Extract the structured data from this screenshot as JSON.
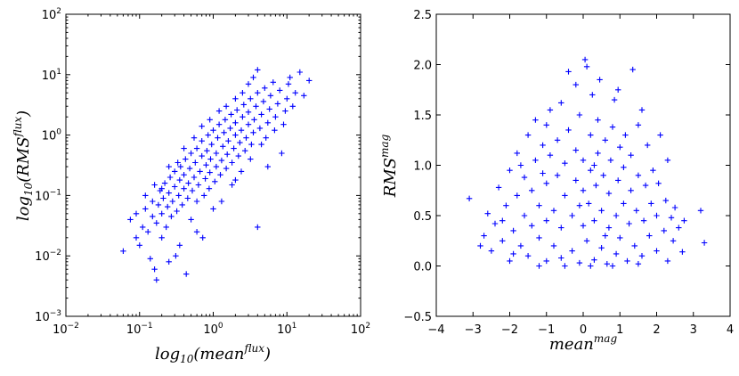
{
  "colors": {
    "marker": "#0000ff",
    "axes": "#000000",
    "background": "#ffffff"
  },
  "chart_data": [
    {
      "type": "scatter",
      "marker": "+",
      "xscale": "log",
      "yscale": "log",
      "xlim": [
        0.01,
        100
      ],
      "ylim": [
        0.001,
        100
      ],
      "xlabel_parts": {
        "base": "log",
        "sub": "10",
        "open": "(",
        "main": "mean",
        "sup": "flux",
        "close": ")"
      },
      "ylabel_parts": {
        "base": "log",
        "sub": "10",
        "open": "(",
        "main": "RMS",
        "sup": "flux",
        "close": ")"
      },
      "xticks": [
        {
          "value": 0.01,
          "base": "10",
          "exp": "−2"
        },
        {
          "value": 0.1,
          "base": "10",
          "exp": "−1"
        },
        {
          "value": 1,
          "base": "10",
          "exp": "0"
        },
        {
          "value": 10,
          "base": "10",
          "exp": "1"
        },
        {
          "value": 100,
          "base": "10",
          "exp": "2"
        }
      ],
      "yticks": [
        {
          "value": 0.001,
          "base": "10",
          "exp": "−3"
        },
        {
          "value": 0.01,
          "base": "10",
          "exp": "−2"
        },
        {
          "value": 0.1,
          "base": "10",
          "exp": "−1"
        },
        {
          "value": 1,
          "base": "10",
          "exp": "0"
        },
        {
          "value": 10,
          "base": "10",
          "exp": "1"
        },
        {
          "value": 100,
          "base": "10",
          "exp": "2"
        }
      ],
      "points": [
        [
          0.06,
          0.012
        ],
        [
          0.075,
          0.04
        ],
        [
          0.09,
          0.02
        ],
        [
          0.1,
          0.015
        ],
        [
          0.11,
          0.03
        ],
        [
          0.12,
          0.06
        ],
        [
          0.13,
          0.025
        ],
        [
          0.14,
          0.009
        ],
        [
          0.15,
          0.045
        ],
        [
          0.15,
          0.08
        ],
        [
          0.17,
          0.004
        ],
        [
          0.17,
          0.035
        ],
        [
          0.18,
          0.07
        ],
        [
          0.19,
          0.12
        ],
        [
          0.2,
          0.02
        ],
        [
          0.2,
          0.05
        ],
        [
          0.21,
          0.09
        ],
        [
          0.22,
          0.16
        ],
        [
          0.23,
          0.03
        ],
        [
          0.24,
          0.065
        ],
        [
          0.25,
          0.11
        ],
        [
          0.26,
          0.2
        ],
        [
          0.27,
          0.045
        ],
        [
          0.28,
          0.08
        ],
        [
          0.3,
          0.14
        ],
        [
          0.3,
          0.25
        ],
        [
          0.31,
          0.01
        ],
        [
          0.32,
          0.055
        ],
        [
          0.34,
          0.1
        ],
        [
          0.35,
          0.18
        ],
        [
          0.36,
          0.3
        ],
        [
          0.38,
          0.07
        ],
        [
          0.4,
          0.13
        ],
        [
          0.4,
          0.22
        ],
        [
          0.42,
          0.4
        ],
        [
          0.43,
          0.005
        ],
        [
          0.45,
          0.09
        ],
        [
          0.46,
          0.16
        ],
        [
          0.48,
          0.28
        ],
        [
          0.5,
          0.5
        ],
        [
          0.5,
          0.04
        ],
        [
          0.52,
          0.12
        ],
        [
          0.55,
          0.2
        ],
        [
          0.57,
          0.35
        ],
        [
          0.6,
          0.6
        ],
        [
          0.6,
          0.08
        ],
        [
          0.63,
          0.15
        ],
        [
          0.66,
          0.25
        ],
        [
          0.7,
          0.45
        ],
        [
          0.7,
          0.8
        ],
        [
          0.72,
          0.02
        ],
        [
          0.75,
          0.1
        ],
        [
          0.78,
          0.19
        ],
        [
          0.8,
          0.32
        ],
        [
          0.82,
          0.55
        ],
        [
          0.85,
          1.0
        ],
        [
          0.88,
          0.13
        ],
        [
          0.9,
          0.24
        ],
        [
          0.92,
          0.4
        ],
        [
          0.95,
          0.7
        ],
        [
          1.0,
          1.2
        ],
        [
          1.0,
          0.06
        ],
        [
          1.05,
          0.17
        ],
        [
          1.1,
          0.3
        ],
        [
          1.1,
          0.5
        ],
        [
          1.15,
          0.9
        ],
        [
          1.2,
          1.5
        ],
        [
          1.25,
          0.22
        ],
        [
          1.3,
          0.38
        ],
        [
          1.35,
          0.65
        ],
        [
          1.4,
          1.1
        ],
        [
          1.45,
          1.8
        ],
        [
          1.5,
          0.28
        ],
        [
          1.55,
          0.48
        ],
        [
          1.6,
          0.8
        ],
        [
          1.7,
          1.3
        ],
        [
          1.75,
          2.2
        ],
        [
          1.8,
          0.35
        ],
        [
          1.9,
          0.6
        ],
        [
          2.0,
          1.0
        ],
        [
          2.0,
          1.6
        ],
        [
          2.1,
          2.6
        ],
        [
          2.2,
          0.45
        ],
        [
          2.3,
          0.75
        ],
        [
          2.4,
          1.2
        ],
        [
          2.5,
          2.0
        ],
        [
          2.6,
          3.2
        ],
        [
          2.7,
          0.55
        ],
        [
          2.8,
          0.9
        ],
        [
          3.0,
          1.5
        ],
        [
          3.0,
          2.4
        ],
        [
          3.2,
          4.0
        ],
        [
          3.3,
          0.7
        ],
        [
          3.5,
          1.1
        ],
        [
          3.6,
          1.8
        ],
        [
          3.8,
          3.0
        ],
        [
          4.0,
          5.0
        ],
        [
          4.0,
          0.03
        ],
        [
          4.3,
          1.3
        ],
        [
          4.5,
          2.2
        ],
        [
          4.8,
          3.6
        ],
        [
          5.0,
          6.0
        ],
        [
          5.2,
          0.9
        ],
        [
          5.5,
          1.6
        ],
        [
          5.8,
          2.7
        ],
        [
          6.0,
          4.5
        ],
        [
          6.5,
          7.5
        ],
        [
          6.8,
          1.2
        ],
        [
          7.0,
          2.0
        ],
        [
          7.5,
          3.3
        ],
        [
          8.0,
          5.5
        ],
        [
          8.5,
          0.5
        ],
        [
          9.0,
          1.5
        ],
        [
          9.5,
          2.5
        ],
        [
          10.0,
          4.0
        ],
        [
          10.5,
          7.0
        ],
        [
          11.0,
          9.0
        ],
        [
          12.0,
          3.0
        ],
        [
          13.0,
          5.0
        ],
        [
          15.0,
          11.0
        ],
        [
          17.0,
          4.5
        ],
        [
          20.0,
          8.0
        ],
        [
          0.09,
          0.05
        ],
        [
          0.12,
          0.1
        ],
        [
          0.16,
          0.15
        ],
        [
          0.2,
          0.13
        ],
        [
          0.25,
          0.3
        ],
        [
          0.33,
          0.35
        ],
        [
          0.4,
          0.6
        ],
        [
          0.55,
          0.9
        ],
        [
          0.7,
          1.4
        ],
        [
          0.9,
          1.8
        ],
        [
          1.2,
          2.5
        ],
        [
          1.5,
          3.0
        ],
        [
          2.0,
          4.0
        ],
        [
          2.5,
          5.0
        ],
        [
          3.0,
          7.0
        ],
        [
          3.5,
          9.0
        ],
        [
          4.0,
          12.0
        ],
        [
          1.3,
          0.08
        ],
        [
          1.8,
          0.15
        ],
        [
          2.4,
          0.25
        ],
        [
          3.2,
          0.4
        ],
        [
          4.5,
          0.7
        ],
        [
          0.35,
          0.015
        ],
        [
          0.25,
          0.008
        ],
        [
          0.6,
          0.025
        ],
        [
          0.16,
          0.006
        ],
        [
          2.0,
          0.18
        ],
        [
          5.5,
          0.3
        ]
      ]
    },
    {
      "type": "scatter",
      "marker": "+",
      "xlim": [
        -4,
        4
      ],
      "ylim": [
        -0.5,
        2.5
      ],
      "xlabel_parts": {
        "main": "mean",
        "sup": "mag"
      },
      "ylabel_parts": {
        "main": "RMS",
        "sup": "mag"
      },
      "xticks": [
        {
          "value": -4,
          "label": "−4"
        },
        {
          "value": -3,
          "label": "−3"
        },
        {
          "value": -2,
          "label": "−2"
        },
        {
          "value": -1,
          "label": "−1"
        },
        {
          "value": 0,
          "label": "0"
        },
        {
          "value": 1,
          "label": "1"
        },
        {
          "value": 2,
          "label": "2"
        },
        {
          "value": 3,
          "label": "3"
        },
        {
          "value": 4,
          "label": "4"
        }
      ],
      "yticks": [
        {
          "value": -0.5,
          "label": "−0.5"
        },
        {
          "value": 0.0,
          "label": "0.0"
        },
        {
          "value": 0.5,
          "label": "0.5"
        },
        {
          "value": 1.0,
          "label": "1.0"
        },
        {
          "value": 1.5,
          "label": "1.5"
        },
        {
          "value": 2.0,
          "label": "2.0"
        },
        {
          "value": 2.5,
          "label": "2.5"
        }
      ],
      "points": [
        [
          -3.1,
          0.67
        ],
        [
          -2.7,
          0.3
        ],
        [
          -2.6,
          0.52
        ],
        [
          -2.5,
          0.15
        ],
        [
          -2.4,
          0.42
        ],
        [
          -2.3,
          0.78
        ],
        [
          -2.2,
          0.25
        ],
        [
          -2.1,
          0.6
        ],
        [
          -2.0,
          0.05
        ],
        [
          -2.0,
          0.95
        ],
        [
          -1.9,
          0.35
        ],
        [
          -1.8,
          0.7
        ],
        [
          -1.8,
          1.12
        ],
        [
          -1.7,
          0.2
        ],
        [
          -1.6,
          0.5
        ],
        [
          -1.6,
          0.88
        ],
        [
          -1.5,
          1.3
        ],
        [
          -1.5,
          0.1
        ],
        [
          -1.4,
          0.4
        ],
        [
          -1.4,
          0.75
        ],
        [
          -1.3,
          1.05
        ],
        [
          -1.3,
          1.45
        ],
        [
          -1.2,
          0.28
        ],
        [
          -1.2,
          0.6
        ],
        [
          -1.1,
          0.92
        ],
        [
          -1.1,
          1.2
        ],
        [
          -1.0,
          0.05
        ],
        [
          -1.0,
          0.45
        ],
        [
          -1.0,
          0.82
        ],
        [
          -0.9,
          1.1
        ],
        [
          -0.9,
          1.55
        ],
        [
          -0.8,
          0.2
        ],
        [
          -0.8,
          0.55
        ],
        [
          -0.7,
          0.9
        ],
        [
          -0.7,
          1.25
        ],
        [
          -0.6,
          0.08
        ],
        [
          -0.6,
          0.38
        ],
        [
          -0.5,
          0.7
        ],
        [
          -0.5,
          1.02
        ],
        [
          -0.4,
          1.35
        ],
        [
          -0.4,
          1.93
        ],
        [
          -0.3,
          0.15
        ],
        [
          -0.3,
          0.5
        ],
        [
          -0.2,
          0.85
        ],
        [
          -0.2,
          1.15
        ],
        [
          -0.1,
          1.5
        ],
        [
          -0.1,
          0.03
        ],
        [
          0.0,
          0.4
        ],
        [
          0.0,
          0.75
        ],
        [
          0.0,
          1.05
        ],
        [
          0.05,
          2.05
        ],
        [
          0.1,
          1.98
        ],
        [
          0.1,
          0.25
        ],
        [
          0.15,
          0.62
        ],
        [
          0.2,
          0.95
        ],
        [
          0.2,
          1.3
        ],
        [
          0.25,
          1.7
        ],
        [
          0.3,
          0.06
        ],
        [
          0.3,
          0.45
        ],
        [
          0.35,
          0.8
        ],
        [
          0.4,
          1.12
        ],
        [
          0.4,
          1.45
        ],
        [
          0.5,
          0.18
        ],
        [
          0.5,
          0.55
        ],
        [
          0.55,
          0.9
        ],
        [
          0.6,
          1.25
        ],
        [
          0.65,
          0.02
        ],
        [
          0.7,
          0.38
        ],
        [
          0.7,
          0.72
        ],
        [
          0.75,
          1.05
        ],
        [
          0.8,
          1.38
        ],
        [
          0.85,
          1.65
        ],
        [
          0.9,
          0.12
        ],
        [
          0.9,
          0.5
        ],
        [
          0.95,
          0.85
        ],
        [
          1.0,
          1.18
        ],
        [
          1.0,
          0.28
        ],
        [
          1.1,
          0.62
        ],
        [
          1.1,
          0.98
        ],
        [
          1.15,
          1.3
        ],
        [
          1.2,
          0.05
        ],
        [
          1.25,
          0.42
        ],
        [
          1.3,
          0.75
        ],
        [
          1.3,
          1.1
        ],
        [
          1.35,
          1.95
        ],
        [
          1.4,
          0.2
        ],
        [
          1.45,
          0.55
        ],
        [
          1.5,
          0.9
        ],
        [
          1.5,
          1.4
        ],
        [
          1.6,
          0.1
        ],
        [
          1.65,
          0.45
        ],
        [
          1.7,
          0.8
        ],
        [
          1.75,
          1.2
        ],
        [
          1.8,
          0.3
        ],
        [
          1.85,
          0.62
        ],
        [
          1.9,
          0.95
        ],
        [
          2.0,
          0.15
        ],
        [
          2.0,
          0.5
        ],
        [
          2.05,
          0.82
        ],
        [
          2.1,
          1.3
        ],
        [
          2.2,
          0.35
        ],
        [
          2.25,
          0.65
        ],
        [
          2.3,
          0.05
        ],
        [
          2.4,
          0.48
        ],
        [
          2.45,
          0.25
        ],
        [
          2.5,
          0.58
        ],
        [
          2.6,
          0.38
        ],
        [
          2.7,
          0.14
        ],
        [
          2.75,
          0.45
        ],
        [
          3.2,
          0.55
        ],
        [
          3.3,
          0.23
        ],
        [
          -2.8,
          0.2
        ],
        [
          -2.2,
          0.45
        ],
        [
          -1.9,
          0.12
        ],
        [
          -1.2,
          0.0
        ],
        [
          -0.5,
          0.0
        ],
        [
          0.2,
          0.0
        ],
        [
          0.8,
          0.0
        ],
        [
          1.5,
          0.02
        ],
        [
          -0.6,
          1.62
        ],
        [
          -0.2,
          1.8
        ],
        [
          0.45,
          1.85
        ],
        [
          0.95,
          1.75
        ],
        [
          -1.0,
          1.4
        ],
        [
          1.6,
          1.55
        ],
        [
          -1.7,
          1.0
        ],
        [
          2.3,
          1.05
        ],
        [
          0.6,
          0.3
        ],
        [
          -0.1,
          0.6
        ],
        [
          0.3,
          1.0
        ]
      ]
    }
  ]
}
